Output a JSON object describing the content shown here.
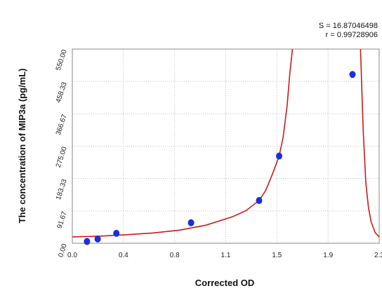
{
  "chart_data": {
    "type": "scatter",
    "title": "",
    "xlabel": "Corrected OD",
    "ylabel": "The concentration of MIP3a (pg/mL)",
    "stats": [
      "S = 16.87046498",
      "r = 0.99728906"
    ],
    "xlim": [
      0,
      2.3
    ],
    "ylim": [
      0,
      550
    ],
    "x_ticks": [
      "0.0",
      "0.4",
      "0.8",
      "1.1",
      "1.5",
      "1.9",
      "2.3"
    ],
    "x_tick_values": [
      0,
      0.383,
      0.767,
      1.15,
      1.533,
      1.917,
      2.3
    ],
    "y_ticks": [
      "0.00",
      "91.67",
      "183.33",
      "275.00",
      "366.67",
      "458.33",
      "550.00"
    ],
    "y_tick_values": [
      0,
      91.67,
      183.33,
      275.0,
      366.67,
      458.33,
      550.0
    ],
    "grid": true,
    "points": [
      {
        "x": 0.11,
        "y": 5
      },
      {
        "x": 0.19,
        "y": 12
      },
      {
        "x": 0.33,
        "y": 28
      },
      {
        "x": 0.89,
        "y": 58
      },
      {
        "x": 1.4,
        "y": 121
      },
      {
        "x": 1.55,
        "y": 247
      },
      {
        "x": 2.1,
        "y": 478
      }
    ],
    "fit_curve": [
      [
        0.0,
        18
      ],
      [
        0.2,
        20
      ],
      [
        0.4,
        24
      ],
      [
        0.6,
        29
      ],
      [
        0.8,
        37
      ],
      [
        1.0,
        51
      ],
      [
        1.2,
        75
      ],
      [
        1.3,
        92
      ],
      [
        1.4,
        121
      ],
      [
        1.45,
        150
      ],
      [
        1.5,
        196
      ],
      [
        1.55,
        247
      ],
      [
        1.58,
        300
      ],
      [
        1.61,
        390
      ],
      [
        1.63,
        480
      ],
      [
        1.65,
        550
      ]
    ],
    "fit_curve_2": [
      [
        2.16,
        550
      ],
      [
        2.18,
        320
      ],
      [
        2.2,
        170
      ],
      [
        2.22,
        100
      ],
      [
        2.24,
        60
      ],
      [
        2.27,
        30
      ],
      [
        2.3,
        18
      ]
    ],
    "colors": {
      "points": "#1a2ee0",
      "curve": "#cc1a1a",
      "grid": "#bfbfbf"
    }
  }
}
